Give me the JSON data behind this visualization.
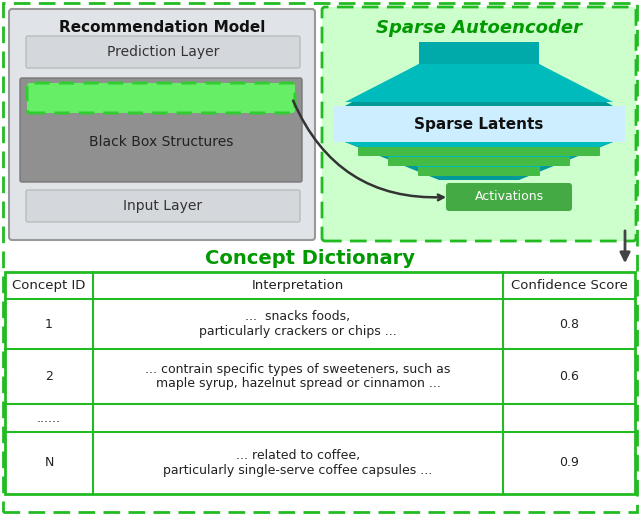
{
  "rec_model_title": "Recommendation Model",
  "sae_title": "Sparse Autoencoder",
  "sae_title_color": "#009900",
  "concept_dict_title": "Concept Dictionary",
  "concept_dict_title_color": "#009900",
  "table_headers": [
    "Concept ID",
    "Interpretation",
    "Confidence Score"
  ],
  "table_rows": [
    [
      "1",
      "...  snacks foods,\nparticularly crackers or chips ...",
      "0.8"
    ],
    [
      "2",
      "... contrain specific types of sweeteners, such as\nmaple syrup, hazelnut spread or cinnamon ...",
      "0.6"
    ],
    [
      "......",
      "",
      ""
    ],
    [
      "N",
      "... related to coffee,\nparticularly single-serve coffee capsules ...",
      "0.9"
    ]
  ],
  "outer_border_color": "#22bb22",
  "table_border_color": "#22bb22",
  "rec_box_bg": "#e0e4e8",
  "rec_box_border": "#999999",
  "prediction_layer_bg": "#d4d8dc",
  "black_box_bg": "#909090",
  "dashed_inner_border": "#33cc33",
  "dashed_inner_fill": "#66ee66",
  "input_layer_bg": "#d4d8dc",
  "sae_box_bg": "#ccffcc",
  "sae_box_border": "#22bb22",
  "teal_dark": "#009999",
  "teal_medium": "#00bbbb",
  "sparse_latents_bg": "#cceeff",
  "green_bar_color": "#44bb44",
  "activation_box_color": "#44aa44",
  "arrow_color": "#333333"
}
